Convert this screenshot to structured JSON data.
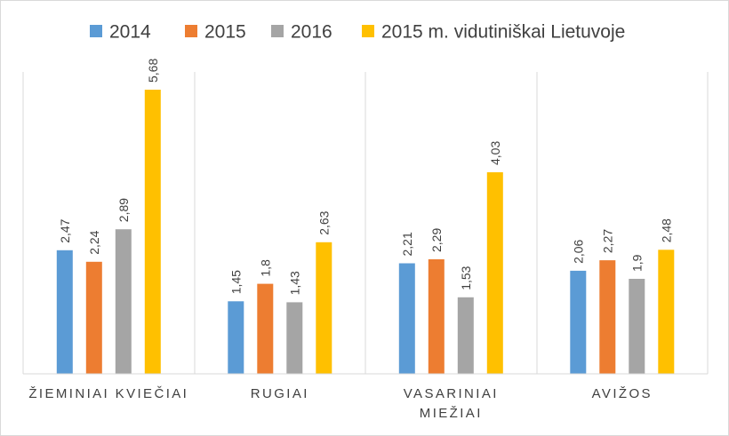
{
  "chart_data": {
    "type": "bar",
    "title": "",
    "xlabel": "",
    "ylabel": "",
    "ylim": [
      0,
      5.68
    ],
    "grid": false,
    "legend_position": "top",
    "categories": [
      [
        "ŽIEMINIAI KVIEČIAI"
      ],
      [
        "RUGIAI"
      ],
      [
        "VASARINIAI",
        "MIEŽIAI"
      ],
      [
        "AVIŽOS"
      ]
    ],
    "series": [
      {
        "name": "2014",
        "color": "#5b9bd5",
        "values": [
          2.47,
          1.45,
          2.21,
          2.06
        ],
        "labels": [
          "2,47",
          "1,45",
          "2,21",
          "2,06"
        ]
      },
      {
        "name": "2015",
        "color": "#ed7d31",
        "values": [
          2.24,
          1.8,
          2.29,
          2.27
        ],
        "labels": [
          "2,24",
          "1,8",
          "2,29",
          "2,27"
        ]
      },
      {
        "name": "2016",
        "color": "#a5a5a5",
        "values": [
          2.89,
          1.43,
          1.53,
          1.9
        ],
        "labels": [
          "2,89",
          "1,43",
          "1,53",
          "1,9"
        ]
      },
      {
        "name": "2015 m. vidutiniškai Lietuvoje",
        "color": "#ffc000",
        "values": [
          5.68,
          2.63,
          4.03,
          2.48
        ],
        "labels": [
          "5,68",
          "2,63",
          "4,03",
          "2,48"
        ]
      }
    ]
  }
}
